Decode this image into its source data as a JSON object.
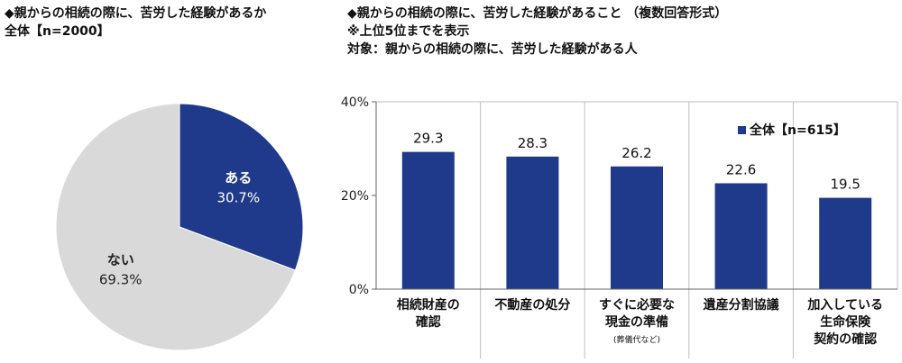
{
  "left_title": {
    "line1": "◆親からの相続の際に、苦労した経験があるか",
    "line2": "全体【n=2000】"
  },
  "right_title": {
    "line1": "◆親からの相続の際に、苦労した経験があること （複数回答形式）",
    "line2": "※上位5位までを表示",
    "line3": "対象：親からの相続の際に、苦労した経験がある人"
  },
  "colors": {
    "navy": "#1f3a8a",
    "gray": "#d9d9d9",
    "grid": "#bfbfbf"
  },
  "chart_data": [
    {
      "type": "pie",
      "title": "全体【n=2000】",
      "slices": [
        {
          "label": "ある",
          "value": 30.7,
          "value_text": "30.7%",
          "color": "#1f3a8a"
        },
        {
          "label": "ない",
          "value": 69.3,
          "value_text": "69.3%",
          "color": "#d9d9d9"
        }
      ]
    },
    {
      "type": "bar",
      "legend": "全体【n=615】",
      "legend_position": "top-right",
      "categories": [
        [
          "相続財産の",
          "確認"
        ],
        [
          "不動産の処分"
        ],
        [
          "すぐに必要な",
          "現金の準備"
        ],
        [
          "遺産分割協議"
        ],
        [
          "加入している",
          "生命保険",
          "契約の確認"
        ]
      ],
      "category_notes": [
        "",
        "",
        "(葬儀代など)",
        "",
        ""
      ],
      "values": [
        29.3,
        28.3,
        26.2,
        22.6,
        19.5
      ],
      "value_labels": [
        "29.3",
        "28.3",
        "26.2",
        "22.6",
        "19.5"
      ],
      "ylim": [
        0,
        40
      ],
      "yticks": [
        "0%",
        "20%",
        "40%"
      ],
      "grid": false
    }
  ]
}
